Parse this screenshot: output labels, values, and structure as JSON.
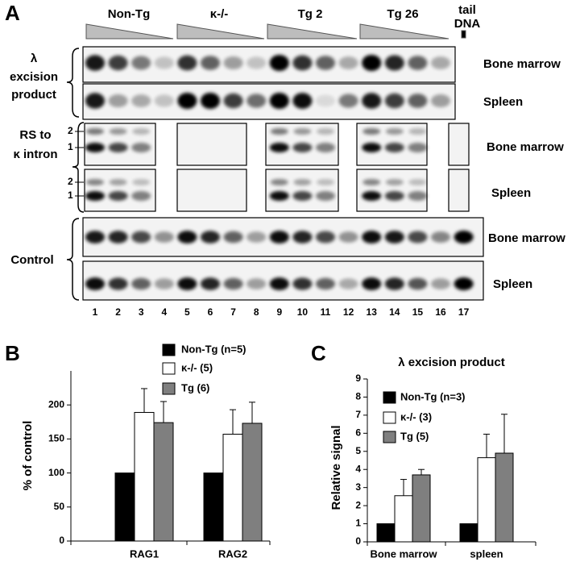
{
  "panel_labels": [
    "A",
    "B",
    "C"
  ],
  "gel": {
    "groups": [
      "Non-Tg",
      "κ-/-",
      "Tg 2",
      "Tg 26"
    ],
    "tail_label": [
      "tail",
      "DNA"
    ],
    "lambda_label": [
      "λ",
      "excision",
      "product"
    ],
    "rs_label": [
      "RS to",
      "κ intron"
    ],
    "control_label": "Control",
    "band_labels": [
      "2",
      "1"
    ],
    "row_labels": [
      "Bone marrow",
      "Spleen",
      "Bone marrow",
      "Spleen",
      "Bone marrow",
      "Spleen"
    ],
    "lanes": [
      1,
      2,
      3,
      4,
      5,
      6,
      7,
      8,
      9,
      10,
      11,
      12,
      13,
      14,
      15,
      16,
      17
    ]
  },
  "chart_data": [
    {
      "type": "bar",
      "ylabel": "% of control",
      "categories": [
        "RAG1",
        "RAG2"
      ],
      "series": [
        {
          "name": "Non-Tg (n=5)",
          "color": "#000000",
          "values": [
            100,
            100
          ]
        },
        {
          "name": "κ-/- (5)",
          "color": "#ffffff",
          "values": [
            189,
            157
          ],
          "errors": [
            35,
            36
          ]
        },
        {
          "name": "Tg (6)",
          "color": "#7f7f7f",
          "values": [
            174,
            173
          ],
          "errors": [
            31,
            31
          ]
        }
      ],
      "ylim": [
        0,
        250
      ],
      "yticks": [
        0,
        50,
        100,
        150,
        200
      ]
    },
    {
      "type": "bar",
      "title": "λ excision product",
      "ylabel": "Relative signal",
      "categories": [
        "Bone marrow",
        "spleen"
      ],
      "series": [
        {
          "name": "Non-Tg (n=3)",
          "color": "#000000",
          "values": [
            1,
            1
          ]
        },
        {
          "name": "κ-/- (3)",
          "color": "#ffffff",
          "values": [
            2.55,
            4.65
          ],
          "errors": [
            0.9,
            1.3
          ]
        },
        {
          "name": "Tg (5)",
          "color": "#7f7f7f",
          "values": [
            3.7,
            4.9
          ],
          "errors": [
            0.3,
            2.15
          ]
        }
      ],
      "ylim": [
        0,
        9
      ],
      "yticks": [
        0,
        1,
        2,
        3,
        4,
        5,
        6,
        7,
        8,
        9
      ]
    }
  ]
}
